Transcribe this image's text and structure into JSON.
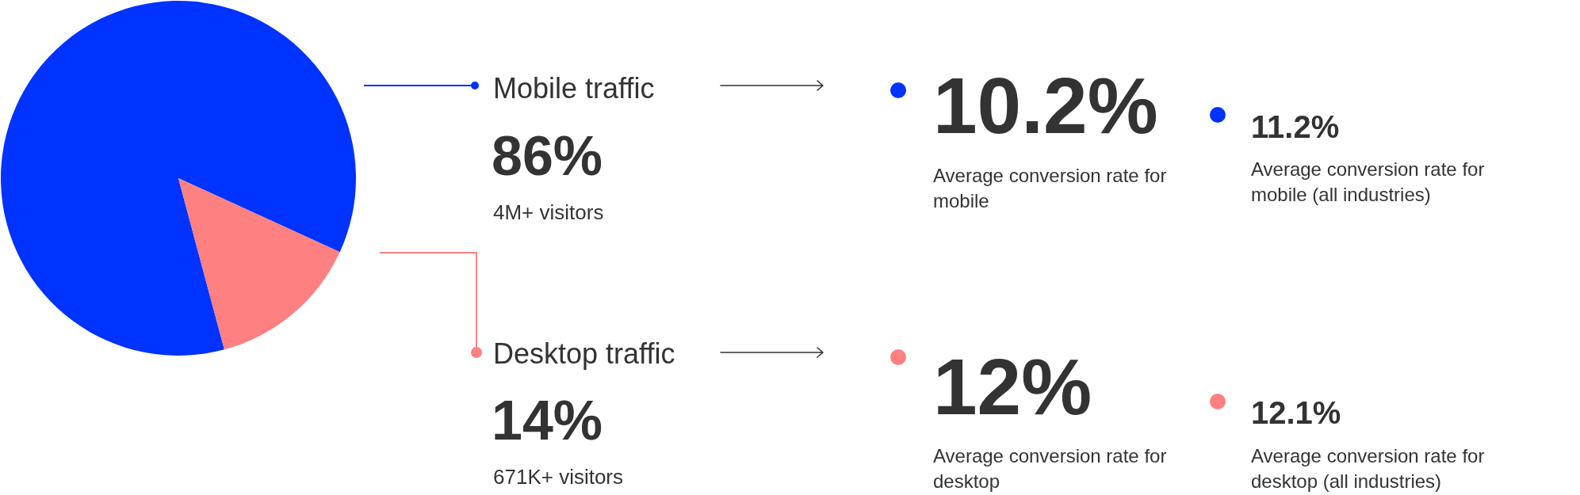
{
  "chart_data": [
    {
      "type": "pie",
      "categories": [
        "Mobile traffic",
        "Desktop traffic"
      ],
      "values": [
        86,
        14
      ],
      "colors": [
        "#0033ff",
        "#ff8080"
      ],
      "value_labels": [
        "86%",
        "14%"
      ],
      "annotations": [
        "4M+ visitors",
        "671K+ visitors"
      ],
      "legend": "right"
    },
    {
      "type": "other",
      "annotations": [
        "10.2%",
        "Average conversion rate for mobile",
        "11.2%",
        "Average conversion rate for mobile (all industries)",
        "12%",
        "Average conversion rate for desktop",
        "12.1%",
        "Average conversion rate for desktop (all industries)"
      ]
    }
  ]
}
